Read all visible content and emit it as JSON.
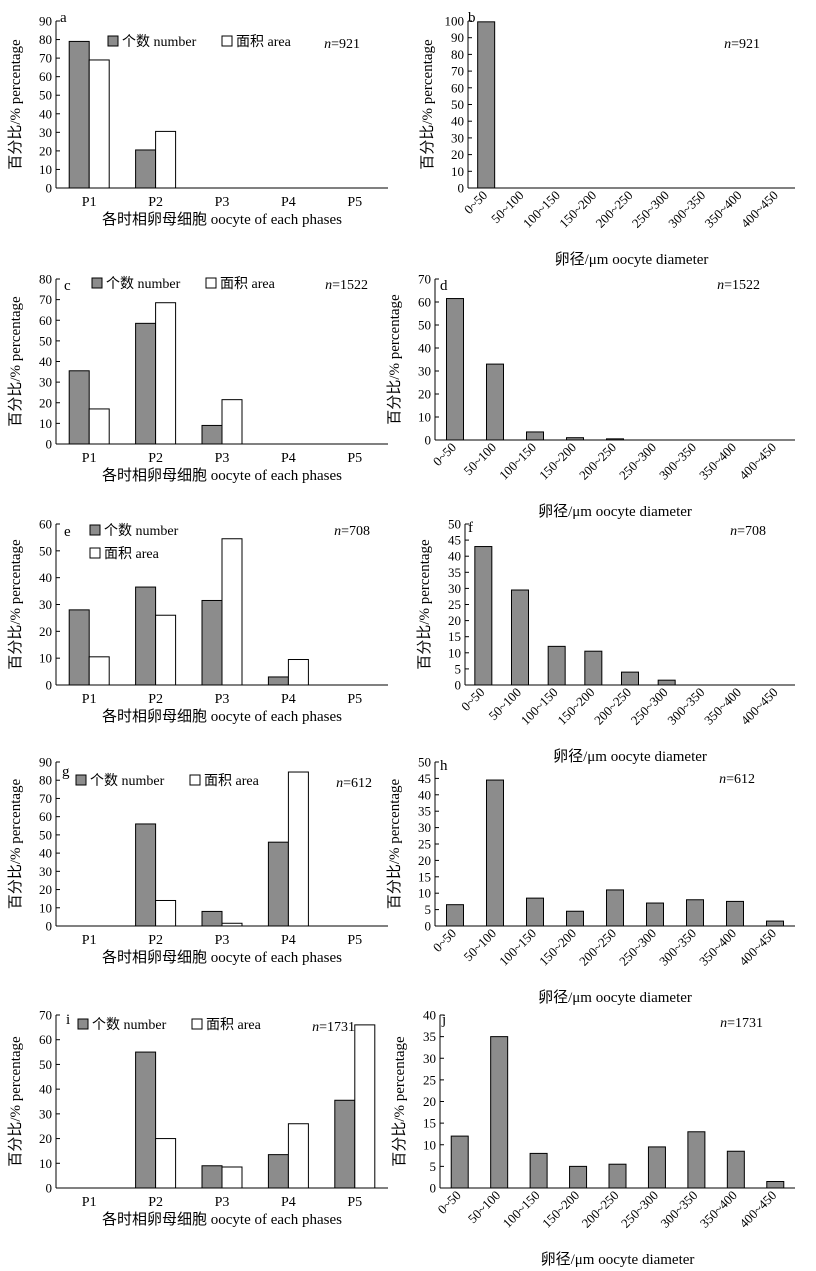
{
  "chart_data": [
    {
      "type": "bar",
      "panel": "a",
      "categories": [
        "P1",
        "P2",
        "P3",
        "P4",
        "P5"
      ],
      "series": [
        {
          "name": "个数 number",
          "values": [
            79,
            20.5,
            0,
            0,
            0
          ]
        },
        {
          "name": "面积 area",
          "values": [
            69,
            30.5,
            0,
            0,
            0
          ]
        }
      ],
      "ylim": [
        0,
        90
      ],
      "yticks": [
        0,
        10,
        20,
        30,
        40,
        50,
        60,
        70,
        80,
        90
      ],
      "xlabel": "各时相卵母细胞 oocyte of each phases",
      "ylabel": "百分比/% percentage",
      "n_label": "n=921",
      "n_prefix": "n",
      "n_value": "=921",
      "legend": "top"
    },
    {
      "type": "bar",
      "panel": "b",
      "categories": [
        "0~50",
        "50~100",
        "100~150",
        "150~200",
        "200~250",
        "250~300",
        "300~350",
        "350~400",
        "400~450"
      ],
      "series": [
        {
          "name": "",
          "values": [
            99.5,
            0,
            0,
            0,
            0,
            0,
            0,
            0,
            0
          ]
        }
      ],
      "ylim": [
        0,
        100
      ],
      "yticks": [
        0,
        10,
        20,
        30,
        40,
        50,
        60,
        70,
        80,
        90,
        100
      ],
      "xlabel": "卵径/μm oocyte diameter",
      "ylabel": "百分比/% percentage",
      "n_label": "n=921",
      "n_prefix": "n",
      "n_value": "=921"
    },
    {
      "type": "bar",
      "panel": "c",
      "categories": [
        "P1",
        "P2",
        "P3",
        "P4",
        "P5"
      ],
      "series": [
        {
          "name": "个数 number",
          "values": [
            35.5,
            58.5,
            9,
            0,
            0
          ]
        },
        {
          "name": "面积 area",
          "values": [
            17,
            68.5,
            21.5,
            0,
            0
          ]
        }
      ],
      "ylim": [
        0,
        80
      ],
      "yticks": [
        0,
        10,
        20,
        30,
        40,
        50,
        60,
        70,
        80
      ],
      "xlabel": "各时相卵母细胞 oocyte of each phases",
      "ylabel": "百分比/% percentage",
      "n_label": "n=1522",
      "n_prefix": "n",
      "n_value": "=1522",
      "legend": "top"
    },
    {
      "type": "bar",
      "panel": "d",
      "categories": [
        "0~50",
        "50~100",
        "100~150",
        "150~200",
        "200~250",
        "250~300",
        "300~350",
        "350~400",
        "400~450"
      ],
      "series": [
        {
          "name": "",
          "values": [
            61.5,
            33,
            3.5,
            1,
            0.5,
            0,
            0,
            0,
            0
          ]
        }
      ],
      "ylim": [
        0,
        70
      ],
      "yticks": [
        0,
        10,
        20,
        30,
        40,
        50,
        60,
        70
      ],
      "xlabel": "卵径/μm oocyte diameter",
      "ylabel": "百分比/% percentage",
      "n_label": "n=1522",
      "n_prefix": "n",
      "n_value": "=1522"
    },
    {
      "type": "bar",
      "panel": "e",
      "categories": [
        "P1",
        "P2",
        "P3",
        "P4",
        "P5"
      ],
      "series": [
        {
          "name": "个数 number",
          "values": [
            28,
            36.5,
            31.5,
            3,
            0
          ]
        },
        {
          "name": "面积 area",
          "values": [
            10.5,
            26,
            54.5,
            9.5,
            0
          ]
        }
      ],
      "ylim": [
        0,
        60
      ],
      "yticks": [
        0,
        10,
        20,
        30,
        40,
        50,
        60
      ],
      "xlabel": "各时相卵母细胞 oocyte of each phases",
      "ylabel": "百分比/% percentage",
      "n_label": "n=708",
      "n_prefix": "n",
      "n_value": "=708",
      "legend": "top-left"
    },
    {
      "type": "bar",
      "panel": "f",
      "categories": [
        "0~50",
        "50~100",
        "100~150",
        "150~200",
        "200~250",
        "250~300",
        "300~350",
        "350~400",
        "400~450"
      ],
      "series": [
        {
          "name": "",
          "values": [
            43,
            29.5,
            12,
            10.5,
            4,
            1.5,
            0,
            0,
            0
          ]
        }
      ],
      "ylim": [
        0,
        50
      ],
      "yticks": [
        0,
        5,
        10,
        15,
        20,
        25,
        30,
        35,
        40,
        45,
        50
      ],
      "xlabel": "卵径/μm oocyte diameter",
      "ylabel": "百分比/% percentage",
      "n_label": "n=708",
      "n_prefix": "n",
      "n_value": "=708"
    },
    {
      "type": "bar",
      "panel": "g",
      "categories": [
        "P1",
        "P2",
        "P3",
        "P4",
        "P5"
      ],
      "series": [
        {
          "name": "个数 number",
          "values": [
            0,
            56,
            8,
            46,
            0
          ]
        },
        {
          "name": "面积 area",
          "values": [
            0,
            14,
            1.5,
            84.5,
            0
          ]
        }
      ],
      "ylim": [
        0,
        90
      ],
      "yticks": [
        0,
        10,
        20,
        30,
        40,
        50,
        60,
        70,
        80,
        90
      ],
      "xlabel": "各时相卵母细胞 oocyte of each phases",
      "ylabel": "百分比/% percentage",
      "n_label": "n=612",
      "n_prefix": "n",
      "n_value": "=612",
      "legend": "top"
    },
    {
      "type": "bar",
      "panel": "h",
      "categories": [
        "0~50",
        "50~100",
        "100~150",
        "150~200",
        "200~250",
        "250~300",
        "300~350",
        "350~400",
        "400~450"
      ],
      "series": [
        {
          "name": "",
          "values": [
            6.5,
            44.5,
            8.5,
            4.5,
            11,
            7,
            8,
            7.5,
            1.5
          ]
        }
      ],
      "ylim": [
        0,
        50
      ],
      "yticks": [
        0,
        5,
        10,
        15,
        20,
        25,
        30,
        35,
        40,
        45,
        50
      ],
      "xlabel": "卵径/μm oocyte diameter",
      "ylabel": "百分比/% percentage",
      "n_label": "n=612",
      "n_prefix": "n",
      "n_value": "=612"
    },
    {
      "type": "bar",
      "panel": "i",
      "categories": [
        "P1",
        "P2",
        "P3",
        "P4",
        "P5"
      ],
      "series": [
        {
          "name": "个数 number",
          "values": [
            0,
            55,
            9,
            13.5,
            35.5
          ]
        },
        {
          "name": "面积 area",
          "values": [
            0,
            20,
            8.5,
            26,
            66
          ]
        }
      ],
      "ylim": [
        0,
        70
      ],
      "yticks": [
        0,
        10,
        20,
        30,
        40,
        50,
        60,
        70
      ],
      "xlabel": "各时相卵母细胞 oocyte of each phases",
      "ylabel": "百分比/% percentage",
      "n_label": "n=1731",
      "n_prefix": "n",
      "n_value": "=1731",
      "legend": "top"
    },
    {
      "type": "bar",
      "panel": "j",
      "categories": [
        "0~50",
        "50~100",
        "100~150",
        "150~200",
        "200~250",
        "250~300",
        "300~350",
        "350~400",
        "400~450"
      ],
      "series": [
        {
          "name": "",
          "values": [
            12,
            35,
            8,
            5,
            5.5,
            9.5,
            13,
            8.5,
            1.5
          ]
        }
      ],
      "ylim": [
        0,
        40
      ],
      "yticks": [
        0,
        5,
        10,
        15,
        20,
        25,
        30,
        35,
        40
      ],
      "xlabel": "卵径/μm oocyte diameter",
      "ylabel": "百分比/% percentage",
      "n_label": "n=1731",
      "n_prefix": "n",
      "n_value": "=1731"
    }
  ],
  "colors": {
    "number_fill": "#8c8c8c",
    "area_fill": "#ffffff",
    "stroke": "#000000"
  }
}
